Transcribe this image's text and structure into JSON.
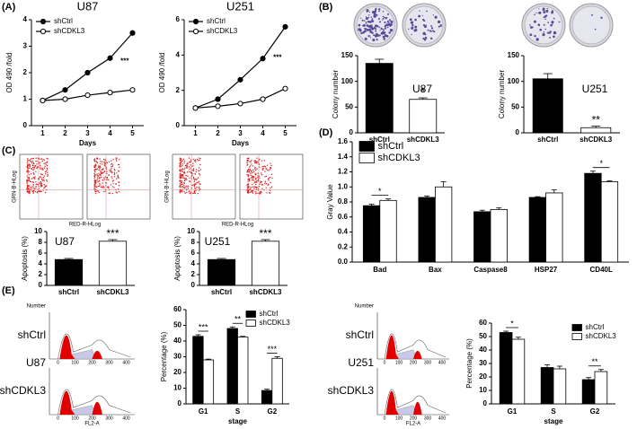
{
  "panels": [
    "(A)",
    "(B)",
    "(C)",
    "(D)",
    "(E)"
  ],
  "flow_axis_labels": {
    "y": "GRN-B-HLog",
    "x": "RED-R-HLog"
  },
  "cell_cycle_labels": {
    "y": "Number",
    "x": "FL2-A",
    "xticks": [
      "0",
      "100",
      "200",
      "300",
      "400"
    ],
    "rows": [
      "shCtrl",
      "shCDKL3"
    ],
    "cells": [
      "U87",
      "U251"
    ]
  },
  "chart_data": [
    {
      "type": "line",
      "title": "U87",
      "x_label": "Days",
      "y_label": "OD 490 /fold",
      "x": [
        1,
        2,
        3,
        4,
        5
      ],
      "xlim": [
        0.5,
        5.5
      ],
      "xticks": [
        1,
        2,
        3,
        4,
        5
      ],
      "ylim": [
        0,
        4
      ],
      "yticks": [
        0,
        1,
        2,
        3,
        4
      ],
      "legend": "upper left",
      "annotation": "***",
      "series": [
        {
          "name": "shCtrl",
          "color": "#000000",
          "values": [
            0.95,
            1.35,
            2.0,
            2.55,
            3.5
          ]
        },
        {
          "name": "shCDKL3",
          "color": "#ffffff",
          "values": [
            0.95,
            1.0,
            1.15,
            1.25,
            1.35
          ]
        }
      ]
    },
    {
      "type": "line",
      "title": "U251",
      "x_label": "Days",
      "y_label": "OD 490 /fold",
      "x": [
        1,
        2,
        3,
        4,
        5
      ],
      "xlim": [
        0.5,
        5.5
      ],
      "xticks": [
        1,
        2,
        3,
        4,
        5
      ],
      "ylim": [
        0,
        6
      ],
      "yticks": [
        0,
        2,
        4,
        6
      ],
      "legend": "upper left",
      "annotation": "***",
      "series": [
        {
          "name": "shCtrl",
          "color": "#000000",
          "values": [
            1.0,
            1.5,
            2.6,
            3.8,
            5.6
          ]
        },
        {
          "name": "shCDKL3",
          "color": "#ffffff",
          "values": [
            1.0,
            1.1,
            1.25,
            1.5,
            2.1
          ]
        }
      ]
    },
    {
      "type": "bar",
      "label": "U87",
      "y_label": "Colony number",
      "categories": [
        "shCtrl",
        "shCDKL3"
      ],
      "values": [
        135,
        65
      ],
      "errors": [
        8,
        3
      ],
      "colors": [
        "#000000",
        "#ffffff"
      ],
      "significance": [
        null,
        "*"
      ],
      "ylim": [
        0,
        150
      ],
      "yticks": [
        0,
        50,
        100,
        150
      ]
    },
    {
      "type": "bar",
      "label": "U251",
      "y_label": "Colony number",
      "categories": [
        "shCtrl",
        "shCDKL3"
      ],
      "values": [
        105,
        10
      ],
      "errors": [
        10,
        3
      ],
      "colors": [
        "#000000",
        "#ffffff"
      ],
      "significance": [
        null,
        "**"
      ],
      "ylim": [
        0,
        150
      ],
      "yticks": [
        0,
        50,
        100,
        150
      ]
    },
    {
      "type": "bar",
      "label": "U87",
      "y_label": "Apoptosis (%)",
      "categories": [
        "shCtrl",
        "shCDKL3"
      ],
      "values": [
        4.8,
        8.2
      ],
      "errors": [
        0.2,
        0.3
      ],
      "colors": [
        "#000000",
        "#ffffff"
      ],
      "significance": [
        null,
        "***"
      ],
      "ylim": [
        0,
        10
      ],
      "yticks": [
        0,
        2,
        4,
        6,
        8,
        10
      ]
    },
    {
      "type": "bar",
      "label": "U251",
      "y_label": "Apoptosis (%)",
      "categories": [
        "shCtrl",
        "shCDKL3"
      ],
      "values": [
        4.8,
        8.2
      ],
      "errors": [
        0.2,
        0.3
      ],
      "colors": [
        "#000000",
        "#ffffff"
      ],
      "significance": [
        null,
        "***"
      ],
      "ylim": [
        0,
        10
      ],
      "yticks": [
        0,
        2,
        4,
        6,
        8,
        10
      ]
    },
    {
      "type": "grouped_bar",
      "y_label": "Gray Value",
      "categories": [
        "Bad",
        "Bax",
        "Caspase8",
        "HSP27",
        "CD40L"
      ],
      "legend": "upper left",
      "significance": [
        "*",
        null,
        null,
        null,
        "*"
      ],
      "ylim": [
        0,
        1.6
      ],
      "yticks": [
        {
          "value": 0,
          "label": "0.0"
        },
        0.2,
        0.4,
        0.6,
        0.8,
        {
          "value": 1,
          "label": "1.0"
        },
        1.2,
        1.4,
        1.6
      ],
      "series": [
        {
          "name": "shCtrl",
          "color": "#000000",
          "values": [
            0.75,
            0.86,
            0.67,
            0.86,
            1.18
          ],
          "errors": [
            0.02,
            0.02,
            0.02,
            0.01,
            0.03
          ]
        },
        {
          "name": "shCDKL3",
          "color": "#ffffff",
          "values": [
            0.82,
            1.0,
            0.7,
            0.92,
            1.07
          ],
          "errors": [
            0.02,
            0.07,
            0.02,
            0.04,
            0.01
          ]
        }
      ]
    },
    {
      "type": "grouped_bar",
      "y_label": "Percentage (%)",
      "x_label": "stage",
      "categories": [
        "G1",
        "S",
        "G2"
      ],
      "legend": "upper right",
      "significance": [
        "***",
        "**",
        "***"
      ],
      "ylim": [
        0,
        60
      ],
      "yticks": [
        0,
        10,
        20,
        30,
        40,
        50,
        60
      ],
      "series": [
        {
          "name": "shCtrl",
          "color": "#000000",
          "values": [
            43,
            48,
            8.5
          ],
          "errors": [
            1,
            1,
            0.8
          ]
        },
        {
          "name": "shCDKL3",
          "color": "#ffffff",
          "values": [
            28,
            42.5,
            29
          ],
          "errors": [
            0.5,
            0.5,
            1
          ]
        }
      ]
    },
    {
      "type": "grouped_bar",
      "y_label": "Percentage (%)",
      "x_label": "stage",
      "categories": [
        "G1",
        "S",
        "G2"
      ],
      "legend": "upper right",
      "significance": [
        "*",
        null,
        "**"
      ],
      "ylim": [
        0,
        60
      ],
      "yticks": [
        0,
        10,
        20,
        30,
        40,
        50,
        60
      ],
      "series": [
        {
          "name": "shCtrl",
          "color": "#000000",
          "values": [
            53,
            27,
            18
          ],
          "errors": [
            1,
            2,
            1.5
          ]
        },
        {
          "name": "shCDKL3",
          "color": "#ffffff",
          "values": [
            48,
            26,
            24
          ],
          "errors": [
            1.5,
            2,
            1.5
          ]
        }
      ]
    }
  ]
}
